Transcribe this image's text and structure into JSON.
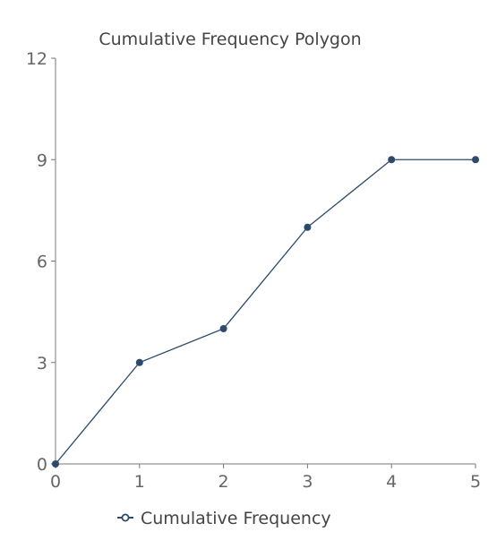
{
  "chart_data": {
    "type": "line",
    "title": "Cumulative Frequency Polygon",
    "x": [
      0,
      1,
      2,
      3,
      4,
      5
    ],
    "series": [
      {
        "name": "Cumulative Frequency",
        "values": [
          0,
          3,
          4,
          7,
          9,
          9
        ]
      }
    ],
    "xlim": [
      0,
      5
    ],
    "ylim": [
      0,
      12
    ],
    "xticks": [
      "0",
      "1",
      "2",
      "3",
      "4",
      "5"
    ],
    "yticks": [
      "0",
      "3",
      "6",
      "9",
      "12"
    ],
    "grid": false,
    "legend_position": "bottom",
    "colors": {
      "series": "#2d4a6b",
      "axis": "#777777"
    }
  }
}
